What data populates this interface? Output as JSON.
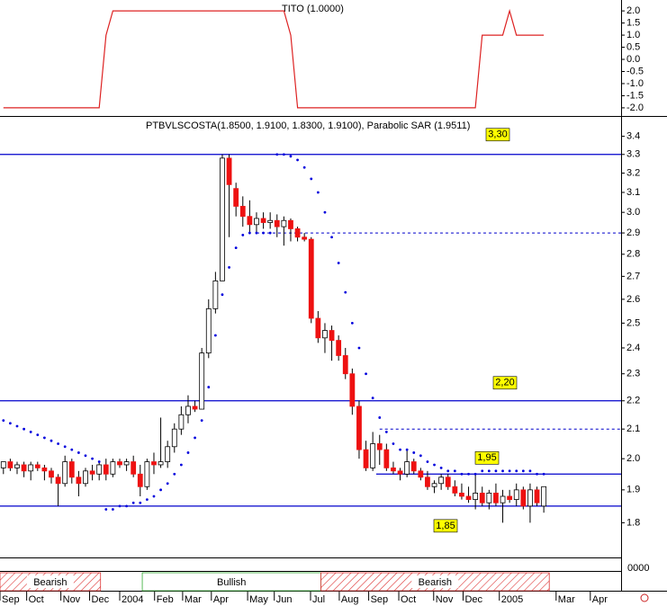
{
  "chart_data": [
    {
      "type": "line",
      "title": "TITO (1.0000)",
      "color": "#dd2222",
      "ylim": [
        -2.3,
        2.45
      ],
      "yticks": [
        {
          "value": 2,
          "label": "2.0"
        },
        1.5,
        {
          "value": 1,
          "label": "1.0"
        },
        0.5,
        {
          "value": 0,
          "label": "0.0"
        },
        -0.5,
        {
          "value": -1,
          "label": "-1.0"
        },
        -1.5,
        {
          "value": -2,
          "label": "-2.0"
        }
      ],
      "values": [
        -2,
        -2,
        -2,
        -2,
        -2,
        -2,
        -2,
        -2,
        -2,
        -2,
        -2,
        -2,
        -2,
        -2,
        -2,
        1,
        2,
        2,
        2,
        2,
        2,
        2,
        2,
        2,
        2,
        2,
        2,
        2,
        2,
        2,
        2,
        2,
        2,
        2,
        2,
        2,
        2,
        2,
        2,
        2,
        2,
        2,
        1,
        -2,
        -2,
        -2,
        -2,
        -2,
        -2,
        -2,
        -2,
        -2,
        -2,
        -2,
        -2,
        -2,
        -2,
        -2,
        -2,
        -2,
        -2,
        -2,
        -2,
        -2,
        -2,
        -2,
        -2,
        -2,
        -2,
        -2,
        1,
        1,
        1,
        1,
        2,
        1,
        1,
        1,
        1,
        1
      ]
    },
    {
      "type": "candlestick",
      "title": "PTBVLSCOSTA(1.8500, 1.9100, 1.8300, 1.9100), Parabolic SAR (1.9511)",
      "log": true,
      "ylim": [
        1.7,
        3.5
      ],
      "yticks": [
        3.4,
        3.3,
        3.2,
        3.1,
        {
          "value": 3,
          "label": "3.0"
        },
        2.9,
        2.8,
        2.7,
        2.6,
        2.5,
        2.4,
        2.3,
        2.2,
        2.1,
        {
          "value": 2,
          "label": "2.0"
        },
        1.9,
        1.8
      ],
      "volume_axis_label": "0000",
      "categories": [
        null,
        null,
        null,
        null,
        null,
        null,
        null,
        null,
        null,
        null,
        null,
        null,
        null,
        null,
        null,
        null,
        null,
        null,
        null,
        null,
        null,
        null,
        null,
        null,
        null,
        null,
        null,
        null,
        null,
        null,
        null,
        null,
        null,
        null,
        null,
        null,
        null,
        null,
        null,
        null,
        null,
        null,
        null,
        null,
        null,
        null,
        null,
        null,
        null,
        null,
        null,
        null,
        null,
        null,
        null,
        null,
        null,
        null,
        null,
        null,
        null,
        null,
        null,
        null,
        null,
        null,
        null,
        null,
        null,
        null,
        null,
        null,
        null,
        null,
        null,
        null,
        null,
        null,
        null,
        null
      ],
      "xlim": [
        -0.5,
        90.3
      ],
      "xticks": [
        {
          "value": -0.5,
          "label": "Sep"
        },
        {
          "value": 3.4,
          "label": "Oct"
        },
        {
          "value": 8.4,
          "label": "Nov"
        },
        {
          "value": 12.6,
          "label": "Dec"
        },
        {
          "value": 17,
          "label": "2004"
        },
        {
          "value": 22.1,
          "label": "Feb"
        },
        {
          "value": 26.2,
          "label": "Mar"
        },
        {
          "value": 30.4,
          "label": "Apr"
        },
        {
          "value": 35.7,
          "label": "May"
        },
        {
          "value": 39.6,
          "label": "Jun"
        },
        {
          "value": 44.9,
          "label": "Jul"
        },
        {
          "value": 49.1,
          "label": "Aug"
        },
        {
          "value": 53.4,
          "label": "Sep"
        },
        {
          "value": 57.8,
          "label": "Oct"
        },
        {
          "value": 62.9,
          "label": "Nov"
        },
        {
          "value": 67.2,
          "label": "Dec"
        },
        {
          "value": 72.5,
          "label": "2005"
        },
        {
          "value": 80.8,
          "label": "Mar"
        },
        {
          "value": 85.8,
          "label": "Apr"
        }
      ],
      "up_color": "#ffffff",
      "down_color": "#ee1111",
      "open": [
        1.97,
        1.99,
        1.97,
        1.98,
        1.96,
        1.98,
        1.97,
        1.96,
        1.94,
        1.92,
        1.99,
        1.94,
        1.92,
        1.96,
        1.95,
        1.98,
        1.95,
        1.99,
        1.98,
        1.99,
        1.95,
        1.91,
        1.99,
        1.98,
        1.99,
        2.04,
        2.1,
        2.15,
        2.18,
        2.17,
        2.38,
        2.56,
        2.68,
        3.28,
        3.12,
        3.03,
        2.98,
        2.94,
        2.97,
        2.95,
        2.96,
        2.93,
        2.96,
        2.92,
        2.88,
        2.87,
        2.52,
        2.44,
        2.47,
        2.43,
        2.37,
        2.3,
        2.18,
        2.03,
        1.97,
        2.05,
        2.03,
        1.97,
        1.96,
        1.95,
        1.99,
        1.96,
        1.94,
        1.91,
        1.92,
        1.94,
        1.91,
        1.89,
        1.88,
        1.87,
        1.89,
        1.86,
        1.89,
        1.86,
        1.88,
        1.87,
        1.9,
        1.85,
        1.9,
        1.85
      ],
      "high": [
        1.99,
        2.0,
        1.99,
        1.99,
        1.99,
        1.99,
        1.98,
        1.97,
        1.95,
        2.01,
        2.0,
        1.96,
        1.97,
        1.98,
        1.99,
        2.0,
        2.0,
        2.0,
        2.0,
        2.01,
        1.98,
        2.0,
        2.02,
        2.14,
        2.06,
        2.12,
        2.18,
        2.22,
        2.2,
        2.4,
        2.6,
        2.72,
        3.3,
        3.3,
        3.15,
        3.08,
        3.06,
        3.0,
        3.0,
        3.0,
        2.99,
        2.98,
        2.97,
        2.93,
        2.9,
        2.88,
        2.55,
        2.5,
        2.49,
        2.45,
        2.4,
        2.32,
        2.2,
        2.06,
        2.09,
        2.08,
        2.05,
        1.99,
        1.97,
        2.03,
        2.0,
        1.97,
        1.96,
        1.93,
        1.95,
        1.95,
        1.93,
        1.92,
        1.91,
        1.95,
        1.91,
        1.9,
        1.92,
        1.9,
        1.9,
        1.92,
        1.91,
        1.92,
        1.91,
        1.91
      ],
      "low": [
        1.95,
        1.96,
        1.95,
        1.94,
        1.93,
        1.96,
        1.93,
        1.92,
        1.85,
        1.91,
        1.92,
        1.88,
        1.91,
        1.93,
        1.93,
        1.93,
        1.94,
        1.97,
        1.96,
        1.94,
        1.88,
        1.9,
        1.95,
        1.97,
        1.97,
        2.02,
        2.08,
        2.12,
        2.16,
        2.17,
        2.36,
        2.54,
        2.68,
        2.88,
        2.98,
        2.93,
        2.9,
        2.9,
        2.92,
        2.92,
        2.88,
        2.84,
        2.86,
        2.86,
        2.86,
        2.5,
        2.42,
        2.38,
        2.35,
        2.35,
        2.28,
        2.15,
        2.0,
        1.96,
        1.96,
        1.98,
        1.96,
        1.95,
        1.93,
        1.94,
        1.95,
        1.93,
        1.9,
        1.89,
        1.9,
        1.9,
        1.88,
        1.87,
        1.86,
        1.84,
        1.85,
        1.84,
        1.85,
        1.8,
        1.86,
        1.85,
        1.84,
        1.8,
        1.85,
        1.83
      ],
      "close": [
        1.99,
        1.97,
        1.98,
        1.96,
        1.98,
        1.97,
        1.96,
        1.94,
        1.92,
        1.99,
        1.94,
        1.92,
        1.96,
        1.95,
        1.98,
        1.95,
        1.99,
        1.98,
        1.99,
        1.95,
        1.91,
        1.99,
        1.98,
        1.99,
        2.04,
        2.1,
        2.15,
        2.18,
        2.17,
        2.38,
        2.56,
        2.68,
        3.28,
        3.14,
        3.03,
        2.98,
        2.94,
        2.97,
        2.95,
        2.96,
        2.93,
        2.96,
        2.92,
        2.88,
        2.87,
        2.52,
        2.44,
        2.47,
        2.43,
        2.37,
        2.3,
        2.18,
        2.03,
        1.97,
        2.05,
        2.03,
        1.97,
        1.96,
        1.95,
        1.99,
        1.96,
        1.94,
        1.91,
        1.92,
        1.94,
        1.91,
        1.89,
        1.88,
        1.87,
        1.89,
        1.86,
        1.89,
        1.86,
        1.88,
        1.87,
        1.9,
        1.85,
        1.9,
        1.86,
        1.91
      ],
      "sar": {
        "color": "#0000dd",
        "values": [
          2.13,
          2.12,
          2.11,
          2.1,
          2.09,
          2.08,
          2.07,
          2.06,
          2.05,
          2.04,
          2.03,
          2.02,
          2.01,
          2.0,
          1.99,
          1.84,
          1.84,
          1.85,
          1.85,
          1.86,
          1.86,
          1.87,
          1.88,
          1.9,
          1.92,
          1.95,
          1.98,
          2.02,
          2.07,
          2.13,
          2.25,
          2.45,
          2.62,
          2.74,
          2.83,
          2.89,
          2.9,
          2.9,
          2.9,
          2.9,
          3.3,
          3.3,
          3.29,
          3.27,
          3.23,
          3.17,
          3.1,
          3.0,
          2.88,
          2.76,
          2.63,
          2.5,
          2.4,
          2.3,
          2.21,
          2.14,
          2.09,
          2.05,
          2.03,
          2.03,
          2.02,
          2.01,
          1.99,
          1.98,
          1.97,
          1.96,
          1.96,
          1.95,
          1.95,
          1.95,
          1.96,
          1.96,
          1.96,
          1.96,
          1.96,
          1.96,
          1.96,
          1.96,
          1.95,
          1.95
        ]
      },
      "levels": [
        {
          "value": 3.3,
          "label": "3,30",
          "from": -0.5,
          "style": "solid"
        },
        {
          "value": 2.9,
          "from": 37,
          "style": "dashed"
        },
        {
          "value": 2.2,
          "label": "2,20",
          "from": -0.5,
          "style": "solid"
        },
        {
          "value": 2.1,
          "from": 55,
          "style": "dashed"
        },
        {
          "value": 1.95,
          "label": "1,95",
          "from": 54.5,
          "style": "solid"
        },
        {
          "value": 1.85,
          "label": "1,85",
          "from": -0.5,
          "style": "solid"
        }
      ],
      "level_color": "#0000cc",
      "label_color": "#ffff00",
      "bands": [
        {
          "label": "Bearish",
          "from": -0.5,
          "to": 14.2,
          "color": "#dd3333"
        },
        {
          "label": "Bullish",
          "from": 20.3,
          "to": 46.4,
          "color": "#33aa33"
        },
        {
          "label": "Bearish",
          "from": 46.4,
          "to": 79.8,
          "color": "#dd3333"
        }
      ]
    }
  ]
}
